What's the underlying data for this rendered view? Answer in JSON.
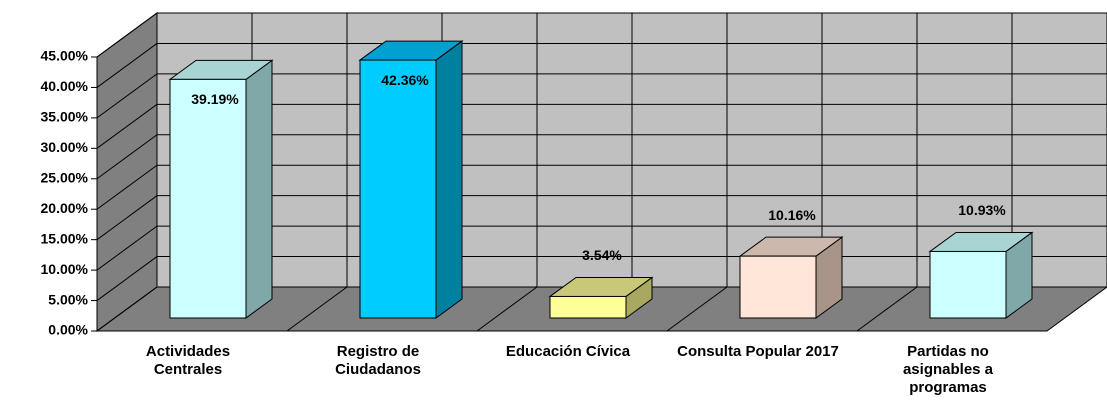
{
  "chart_data": {
    "type": "bar3d",
    "categories": [
      "Actividades Centrales",
      "Registro de Ciudadanos",
      "Educación Cívica",
      "Consulta Popular 2017",
      "Partidas no asignables a programas"
    ],
    "values": [
      39.19,
      42.36,
      3.54,
      10.16,
      10.93
    ],
    "value_labels": [
      "39.19%",
      "42.36%",
      "3.54%",
      "10.16%",
      "10.93%"
    ],
    "colors": [
      {
        "front": "#ccffff",
        "side": "#80a8a8",
        "top": "#a8d4d4"
      },
      {
        "front": "#00ccff",
        "side": "#0080a0",
        "top": "#00a0d0"
      },
      {
        "front": "#ffff99",
        "side": "#a8a860",
        "top": "#c8c878"
      },
      {
        "front": "#ffe6d9",
        "side": "#a89488",
        "top": "#ccb8ac"
      },
      {
        "front": "#ccffff",
        "side": "#80a8a8",
        "top": "#a8d4d4"
      }
    ],
    "ylim": [
      0,
      45
    ],
    "yticks": [
      {
        "value": 0,
        "label": "0.00%"
      },
      {
        "value": 5,
        "label": "5.00%"
      },
      {
        "value": 10,
        "label": "10.00%"
      },
      {
        "value": 15,
        "label": "15.00%"
      },
      {
        "value": 20,
        "label": "20.00%"
      },
      {
        "value": 25,
        "label": "25.00%"
      },
      {
        "value": 30,
        "label": "30.00%"
      },
      {
        "value": 35,
        "label": "35.00%"
      },
      {
        "value": 40,
        "label": "40.00%"
      },
      {
        "value": 45,
        "label": "45.00%"
      }
    ],
    "grid": true
  }
}
